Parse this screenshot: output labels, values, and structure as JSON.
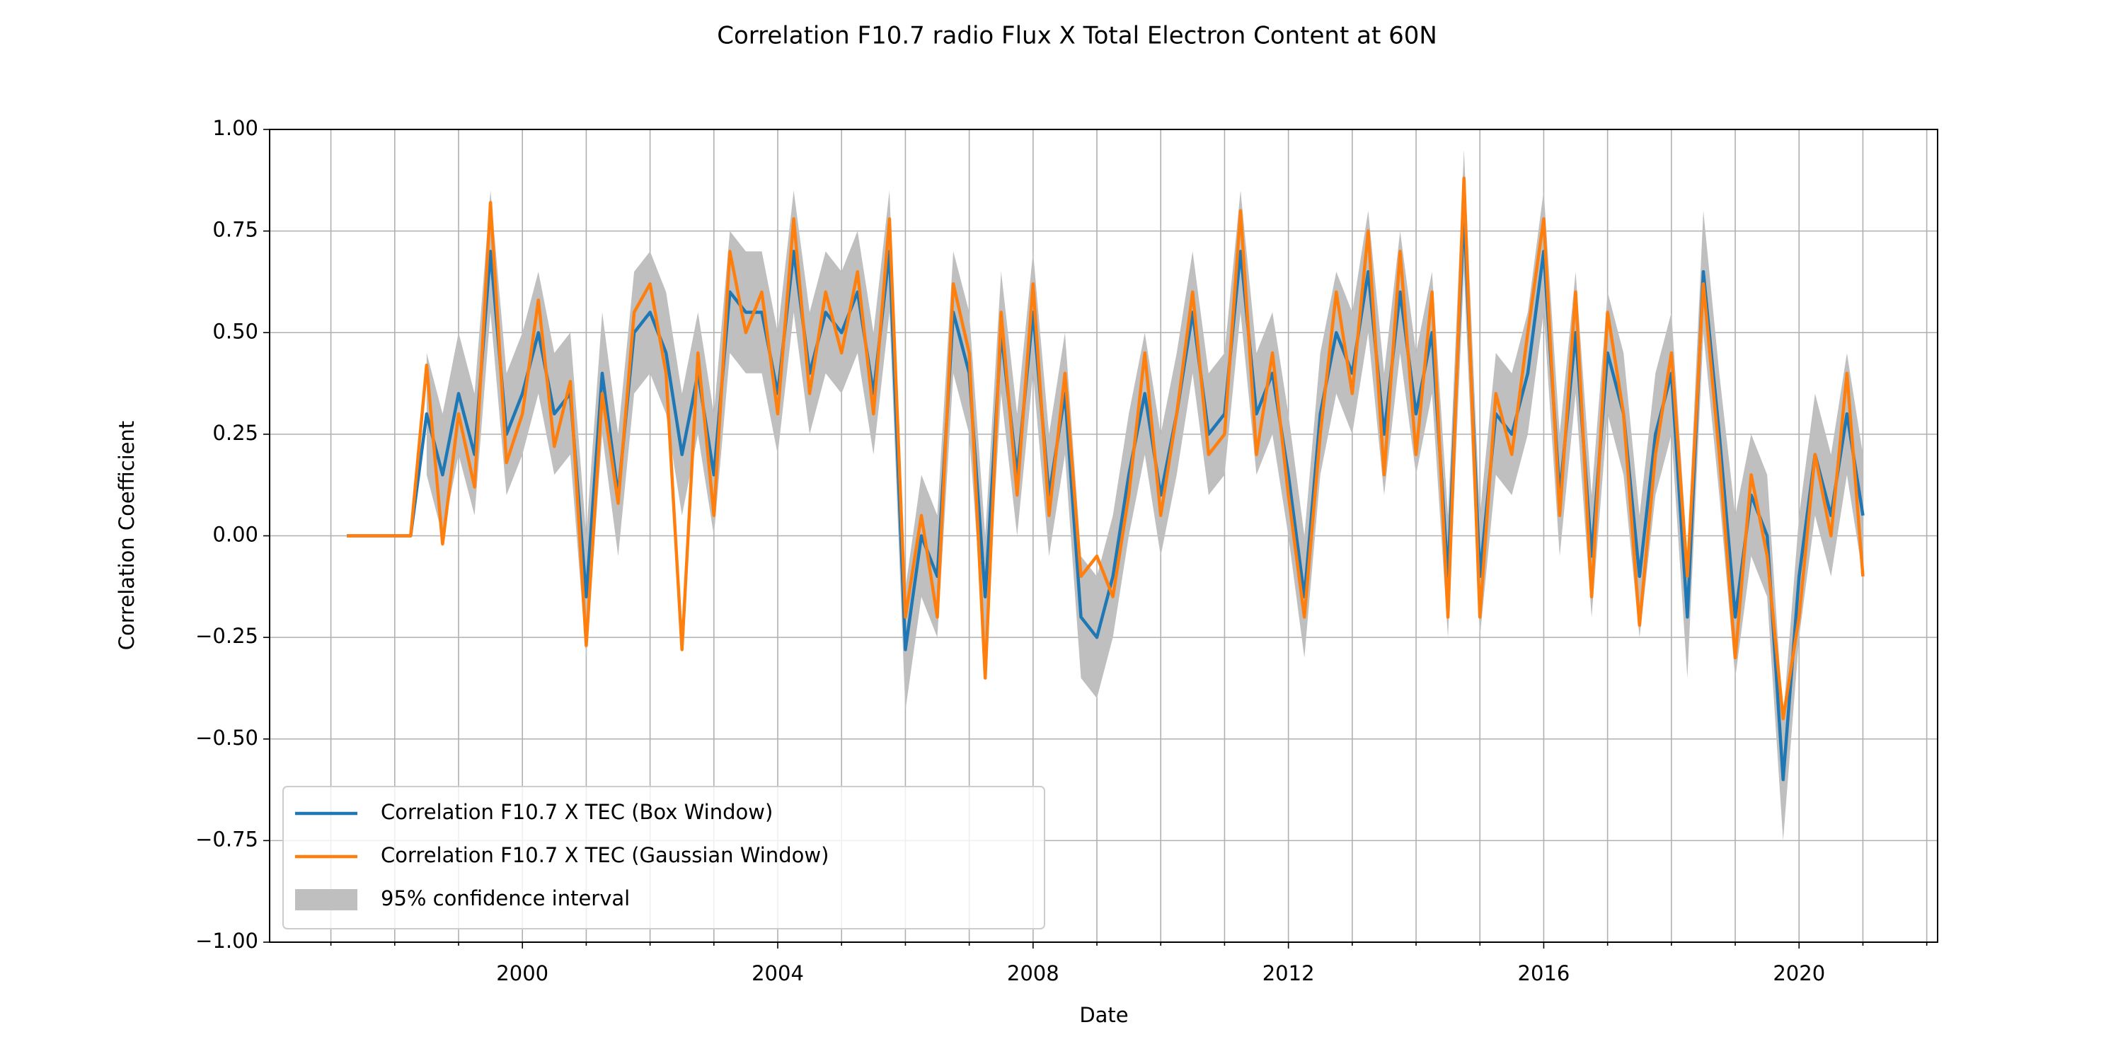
{
  "chart_data": {
    "type": "line",
    "title": "Correlation F10.7 radio Flux X Total Electron Content at 60N",
    "xlabel": "Date",
    "ylabel": "Correlation Coefficient",
    "xlim": [
      1996.04,
      2022.17
    ],
    "ylim": [
      -1,
      1
    ],
    "xticks": [
      2000,
      2004,
      2008,
      2012,
      2016,
      2020
    ],
    "xminorticks": [
      1997,
      1998,
      1999,
      2001,
      2002,
      2003,
      2005,
      2006,
      2007,
      2009,
      2010,
      2011,
      2013,
      2014,
      2015,
      2017,
      2018,
      2019,
      2021,
      2022
    ],
    "yticks": [
      {
        "value": -1,
        "label": "−1.00"
      },
      {
        "value": -0.75,
        "label": "−0.75"
      },
      {
        "value": -0.5,
        "label": "−0.50"
      },
      {
        "value": -0.25,
        "label": "−0.25"
      },
      {
        "value": 0,
        "label": "0.00"
      },
      {
        "value": 0.25,
        "label": "0.25"
      },
      {
        "value": 0.5,
        "label": "0.50"
      },
      {
        "value": 0.75,
        "label": "0.75"
      },
      {
        "value": 1,
        "label": "1.00"
      }
    ],
    "grid": true,
    "legend": "lower left",
    "x": [
      1997.25,
      1997.5,
      1997.75,
      1998,
      1998.25,
      1998.5,
      1998.75,
      1999,
      1999.25,
      1999.5,
      1999.75,
      2000,
      2000.25,
      2000.5,
      2000.75,
      2001,
      2001.25,
      2001.5,
      2001.75,
      2002,
      2002.25,
      2002.5,
      2002.75,
      2003,
      2003.25,
      2003.5,
      2003.75,
      2004,
      2004.25,
      2004.5,
      2004.75,
      2005,
      2005.25,
      2005.5,
      2005.75,
      2006,
      2006.25,
      2006.5,
      2006.75,
      2007,
      2007.25,
      2007.5,
      2007.75,
      2008,
      2008.25,
      2008.5,
      2008.75,
      2009,
      2009.25,
      2009.5,
      2009.75,
      2010,
      2010.25,
      2010.5,
      2010.75,
      2011,
      2011.25,
      2011.5,
      2011.75,
      2012,
      2012.25,
      2012.5,
      2012.75,
      2013,
      2013.25,
      2013.5,
      2013.75,
      2014,
      2014.25,
      2014.5,
      2014.75,
      2015,
      2015.25,
      2015.5,
      2015.75,
      2016,
      2016.25,
      2016.5,
      2016.75,
      2017,
      2017.25,
      2017.5,
      2017.75,
      2018,
      2018.25,
      2018.5,
      2018.75,
      2019,
      2019.25,
      2019.5,
      2019.75,
      2020,
      2020.25,
      2020.5,
      2020.75,
      2021
    ],
    "series": [
      {
        "name": "Correlation F10.7 X TEC (Box Window)",
        "color": "#1f77b4",
        "values": [
          0,
          0,
          0,
          0,
          0,
          0.3,
          0.15,
          0.35,
          0.2,
          0.7,
          0.25,
          0.35,
          0.5,
          0.3,
          0.35,
          -0.15,
          0.4,
          0.1,
          0.5,
          0.55,
          0.45,
          0.2,
          0.4,
          0.15,
          0.6,
          0.55,
          0.55,
          0.35,
          0.7,
          0.4,
          0.55,
          0.5,
          0.6,
          0.35,
          0.7,
          -0.28,
          0.0,
          -0.1,
          0.55,
          0.4,
          -0.15,
          0.5,
          0.15,
          0.55,
          0.1,
          0.35,
          -0.2,
          -0.25,
          -0.1,
          0.15,
          0.35,
          0.1,
          0.3,
          0.55,
          0.25,
          0.3,
          0.7,
          0.3,
          0.4,
          0.15,
          -0.15,
          0.3,
          0.5,
          0.4,
          0.65,
          0.25,
          0.6,
          0.3,
          0.5,
          -0.1,
          0.8,
          -0.1,
          0.3,
          0.25,
          0.4,
          0.7,
          0.1,
          0.5,
          -0.05,
          0.45,
          0.3,
          -0.1,
          0.25,
          0.4,
          -0.2,
          0.65,
          0.25,
          -0.2,
          0.1,
          0.0,
          -0.6,
          -0.1,
          0.2,
          0.05,
          0.3,
          0.05
        ]
      },
      {
        "name": "Correlation F10.7 X TEC (Gaussian Window)",
        "color": "#ff7f0e",
        "values": [
          0,
          0,
          0,
          0,
          0,
          0.42,
          -0.02,
          0.3,
          0.12,
          0.82,
          0.18,
          0.3,
          0.58,
          0.22,
          0.38,
          -0.27,
          0.35,
          0.08,
          0.55,
          0.62,
          0.4,
          -0.28,
          0.45,
          0.05,
          0.7,
          0.5,
          0.6,
          0.3,
          0.78,
          0.35,
          0.6,
          0.45,
          0.65,
          0.3,
          0.78,
          -0.2,
          0.05,
          -0.2,
          0.62,
          0.45,
          -0.35,
          0.55,
          0.1,
          0.62,
          0.05,
          0.4,
          -0.1,
          -0.05,
          -0.15,
          0.1,
          0.45,
          0.05,
          0.3,
          0.6,
          0.2,
          0.25,
          0.8,
          0.2,
          0.45,
          0.1,
          -0.2,
          0.25,
          0.6,
          0.35,
          0.75,
          0.15,
          0.7,
          0.2,
          0.6,
          -0.2,
          0.88,
          -0.2,
          0.35,
          0.2,
          0.5,
          0.78,
          0.05,
          0.6,
          -0.15,
          0.55,
          0.3,
          -0.22,
          0.2,
          0.45,
          -0.1,
          0.62,
          0.2,
          -0.3,
          0.15,
          -0.05,
          -0.45,
          -0.2,
          0.2,
          0.0,
          0.4,
          -0.1
        ]
      }
    ],
    "band": {
      "name": "95% confidence interval",
      "color": "#bfbfbf",
      "lower": [
        null,
        null,
        null,
        null,
        null,
        0.15,
        0.0,
        0.2,
        0.05,
        0.55,
        0.1,
        0.2,
        0.35,
        0.15,
        0.2,
        -0.3,
        0.25,
        -0.05,
        0.35,
        0.4,
        0.3,
        0.05,
        0.25,
        0.0,
        0.45,
        0.4,
        0.4,
        0.2,
        0.55,
        0.25,
        0.4,
        0.35,
        0.45,
        0.2,
        0.55,
        -0.43,
        -0.15,
        -0.25,
        0.4,
        0.25,
        -0.3,
        0.35,
        0.0,
        0.4,
        -0.05,
        0.2,
        -0.35,
        -0.4,
        -0.25,
        0.0,
        0.2,
        -0.05,
        0.15,
        0.4,
        0.1,
        0.15,
        0.55,
        0.15,
        0.25,
        0.0,
        -0.3,
        0.15,
        0.35,
        0.25,
        0.5,
        0.1,
        0.45,
        0.15,
        0.35,
        -0.25,
        0.65,
        -0.25,
        0.15,
        0.1,
        0.25,
        0.55,
        -0.05,
        0.35,
        -0.2,
        0.3,
        0.15,
        -0.25,
        0.1,
        0.25,
        -0.35,
        0.5,
        0.1,
        -0.35,
        -0.05,
        -0.15,
        -0.75,
        -0.25,
        0.05,
        -0.1,
        0.15,
        -0.1
      ],
      "upper": [
        null,
        null,
        null,
        null,
        null,
        0.45,
        0.3,
        0.5,
        0.35,
        0.85,
        0.4,
        0.5,
        0.65,
        0.45,
        0.5,
        0.0,
        0.55,
        0.25,
        0.65,
        0.7,
        0.6,
        0.35,
        0.55,
        0.3,
        0.75,
        0.7,
        0.7,
        0.5,
        0.85,
        0.55,
        0.7,
        0.65,
        0.75,
        0.5,
        0.85,
        -0.13,
        0.15,
        0.05,
        0.7,
        0.55,
        0.0,
        0.65,
        0.3,
        0.7,
        0.25,
        0.5,
        -0.05,
        -0.1,
        0.05,
        0.3,
        0.5,
        0.25,
        0.45,
        0.7,
        0.4,
        0.45,
        0.85,
        0.45,
        0.55,
        0.3,
        0.0,
        0.45,
        0.65,
        0.55,
        0.8,
        0.4,
        0.75,
        0.45,
        0.65,
        0.05,
        0.95,
        0.05,
        0.45,
        0.4,
        0.55,
        0.85,
        0.25,
        0.65,
        0.1,
        0.6,
        0.45,
        0.05,
        0.4,
        0.55,
        -0.05,
        0.8,
        0.4,
        0.05,
        0.25,
        0.15,
        -0.45,
        0.05,
        0.35,
        0.2,
        0.45,
        0.2
      ]
    }
  }
}
